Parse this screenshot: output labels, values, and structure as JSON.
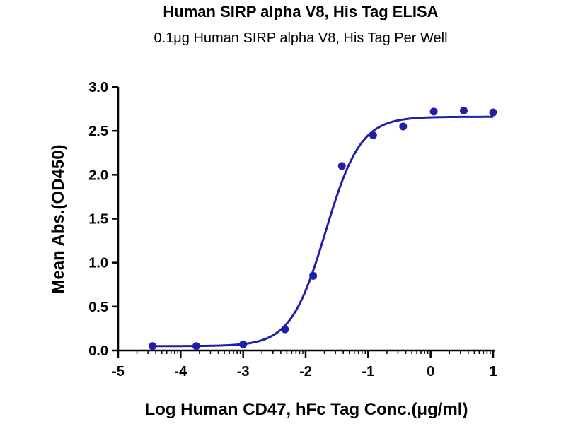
{
  "chart_data": {
    "type": "scatter",
    "title": "Human SIRP alpha V8, His Tag ELISA",
    "subtitle": "0.1μg Human SIRP alpha V8, His Tag Per Well",
    "xlabel": "Log Human CD47, hFc Tag Conc.(μg/ml)",
    "ylabel": "Mean Abs.(OD450)",
    "xlim": [
      -5,
      1
    ],
    "ylim": [
      0,
      3.0
    ],
    "x_ticks": [
      "-5",
      "-4",
      "-3",
      "-2",
      "-1",
      "0",
      "1"
    ],
    "y_ticks": [
      "0.0",
      "0.5",
      "1.0",
      "1.5",
      "2.0",
      "2.5",
      "3.0"
    ],
    "grid": false,
    "series": [
      {
        "points": [
          {
            "x": -4.45,
            "y": 0.05
          },
          {
            "x": -3.75,
            "y": 0.05
          },
          {
            "x": -3.0,
            "y": 0.07
          },
          {
            "x": -2.33,
            "y": 0.24
          },
          {
            "x": -1.88,
            "y": 0.85
          },
          {
            "x": -1.42,
            "y": 2.1
          },
          {
            "x": -0.92,
            "y": 2.45
          },
          {
            "x": -0.44,
            "y": 2.55
          },
          {
            "x": 0.05,
            "y": 2.72
          },
          {
            "x": 0.53,
            "y": 2.73
          },
          {
            "x": 1.0,
            "y": 2.71
          }
        ],
        "fit": {
          "type": "4PL",
          "bottom": 0.05,
          "top": 2.66,
          "logEC50": -1.68,
          "hill": 1.55
        }
      }
    ],
    "colors": {
      "series": "#1f1fa8",
      "axis": "#000000"
    }
  }
}
